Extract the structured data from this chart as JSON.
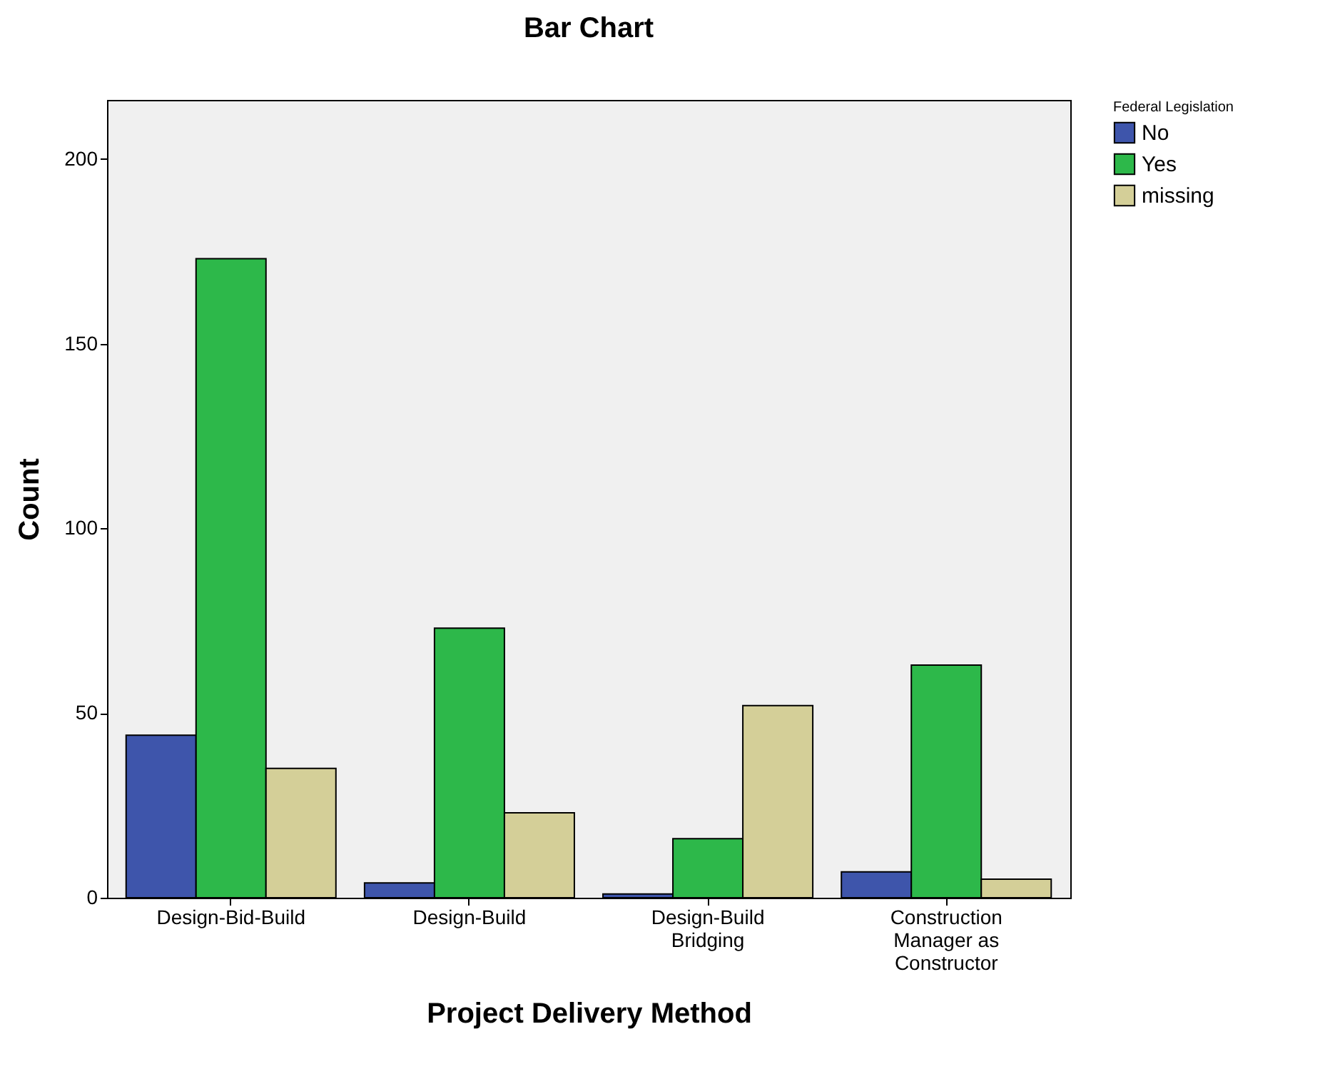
{
  "chart_data": {
    "type": "bar",
    "title": "Bar Chart",
    "xlabel": "Project Delivery Method",
    "ylabel": "Count",
    "legend_title": "Federal Legislation",
    "categories": [
      "Design-Bid-Build",
      "Design-Build",
      "Design-Build Bridging",
      "Construction Manager as Constructor"
    ],
    "series": [
      {
        "name": "No",
        "color": "#3e55ab",
        "values": [
          44,
          4,
          1,
          7
        ]
      },
      {
        "name": "Yes",
        "color": "#2db84a",
        "values": [
          173,
          73,
          16,
          63
        ]
      },
      {
        "name": "missing",
        "color": "#d4cf98",
        "values": [
          35,
          23,
          52,
          5
        ]
      }
    ],
    "ylim": [
      0,
      216
    ],
    "yticks": [
      0,
      50,
      100,
      150,
      200
    ],
    "grid": false,
    "legend": "top right"
  }
}
